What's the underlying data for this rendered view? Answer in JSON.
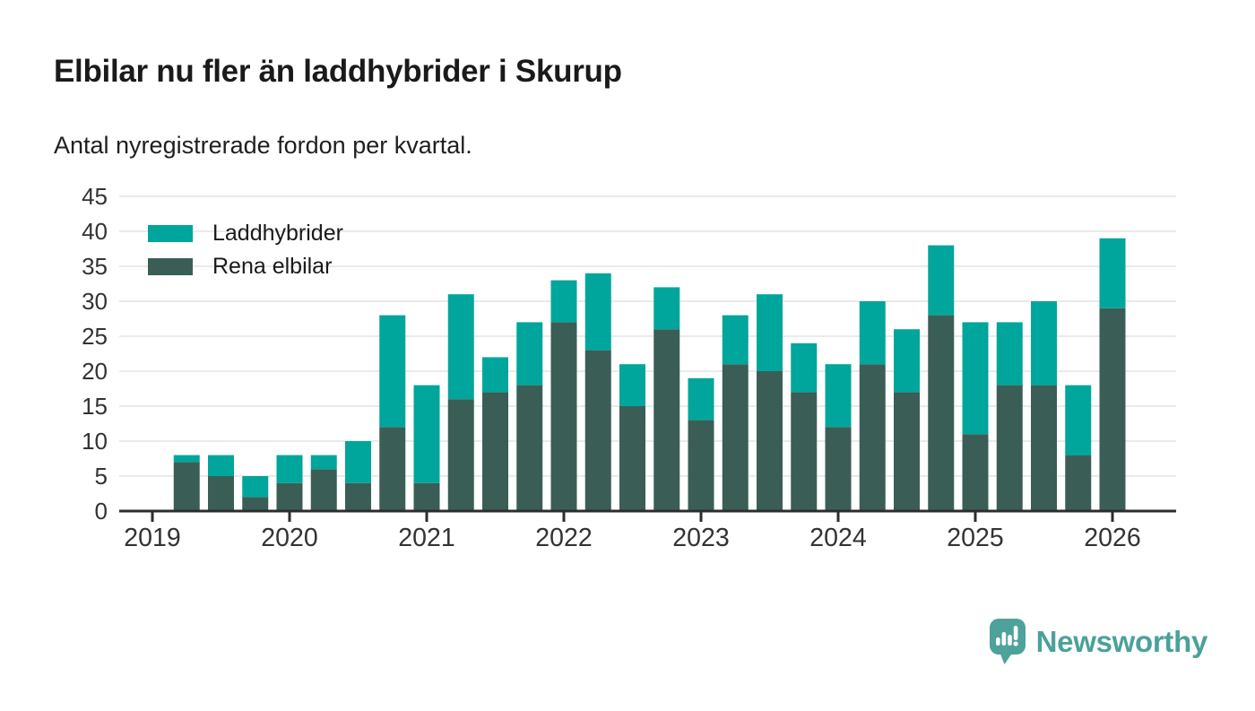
{
  "chart_data": {
    "type": "bar",
    "stacked": true,
    "title": "Elbilar nu fler än laddhybrider i Skurup",
    "subtitle": "Antal nyregistrerade fordon per kvartal.",
    "categories": [
      "2019 Q2",
      "2019 Q3",
      "2019 Q4",
      "2020 Q1",
      "2020 Q2",
      "2020 Q3",
      "2020 Q4",
      "2021 Q1",
      "2021 Q2",
      "2021 Q3",
      "2021 Q4",
      "2022 Q1",
      "2022 Q2",
      "2022 Q3",
      "2022 Q4",
      "2023 Q1",
      "2023 Q2",
      "2023 Q3",
      "2023 Q4",
      "2024 Q1",
      "2024 Q2",
      "2024 Q3",
      "2024 Q4",
      "2025 Q1",
      "2025 Q2",
      "2025 Q3",
      "2025 Q4",
      "2026 Q1"
    ],
    "series": [
      {
        "name": "Rena elbilar",
        "color": "#3a5e56",
        "values": [
          7,
          5,
          2,
          4,
          6,
          4,
          12,
          4,
          16,
          17,
          18,
          27,
          23,
          15,
          26,
          13,
          21,
          20,
          17,
          12,
          21,
          17,
          28,
          11,
          18,
          18,
          8,
          29
        ]
      },
      {
        "name": "Laddhybrider",
        "color": "#00a69b",
        "values": [
          1,
          3,
          3,
          4,
          2,
          6,
          16,
          14,
          15,
          5,
          9,
          6,
          11,
          6,
          6,
          6,
          7,
          11,
          7,
          9,
          9,
          9,
          10,
          16,
          9,
          12,
          10,
          10
        ]
      }
    ],
    "totals": [
      8,
      8,
      5,
      8,
      8,
      10,
      28,
      18,
      31,
      22,
      27,
      33,
      34,
      21,
      32,
      19,
      28,
      31,
      24,
      21,
      30,
      26,
      38,
      27,
      27,
      30,
      18,
      39
    ],
    "y_ticks": [
      0,
      5,
      10,
      15,
      20,
      25,
      30,
      35,
      40,
      45
    ],
    "ylim": [
      0,
      45
    ],
    "x_tick_labels": [
      "2019",
      "2020",
      "2021",
      "2022",
      "2023",
      "2024",
      "2025",
      "2026"
    ],
    "grid": true,
    "legend_position": "top-left-inside",
    "legend_order": [
      "Laddhybrider",
      "Rena elbilar"
    ],
    "colors": {
      "grid": "#e4e4e4",
      "axis": "#2d2d2d",
      "tick_label": "#333333",
      "text": "#1a1a1a"
    }
  },
  "footer": {
    "brand": "Newsworthy",
    "brand_color": "#4ba19a"
  }
}
